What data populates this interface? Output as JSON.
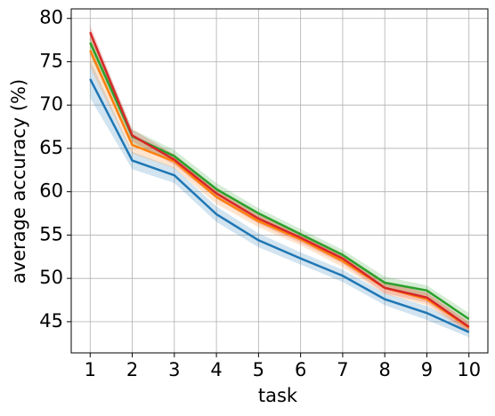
{
  "chart_data": {
    "type": "line",
    "xlabel": "task",
    "ylabel": "average accuracy (%)",
    "x": [
      1,
      2,
      3,
      4,
      5,
      6,
      7,
      8,
      9,
      10
    ],
    "series": [
      {
        "color": "#1f77b4",
        "values": [
          73.0,
          63.6,
          61.9,
          57.4,
          54.4,
          52.3,
          50.3,
          47.6,
          46.0,
          43.8
        ],
        "errors": [
          2.2,
          1.0,
          0.9,
          0.9,
          0.8,
          0.7,
          0.7,
          0.7,
          0.8,
          0.6
        ]
      },
      {
        "color": "#ff7f0e",
        "values": [
          76.3,
          65.4,
          63.5,
          59.4,
          56.6,
          54.5,
          52.0,
          48.9,
          47.6,
          44.3
        ],
        "errors": [
          2.0,
          1.0,
          0.8,
          0.8,
          0.7,
          0.7,
          0.7,
          0.7,
          0.7,
          0.6
        ]
      },
      {
        "color": "#2ca02c",
        "values": [
          77.2,
          66.4,
          64.1,
          60.3,
          57.5,
          55.1,
          52.7,
          49.5,
          48.6,
          45.3
        ],
        "errors": [
          1.5,
          0.8,
          0.7,
          0.7,
          0.6,
          0.6,
          0.6,
          0.7,
          0.6,
          0.7
        ]
      },
      {
        "color": "#d62728",
        "values": [
          78.4,
          66.5,
          63.7,
          59.8,
          56.9,
          54.7,
          52.3,
          48.9,
          47.8,
          44.4
        ],
        "errors": [
          0.8,
          0.7,
          0.6,
          0.6,
          0.6,
          0.6,
          0.6,
          0.6,
          0.6,
          0.6
        ]
      }
    ],
    "xlim": [
      0.55,
      10.45
    ],
    "xticks": [
      1,
      2,
      3,
      4,
      5,
      6,
      7,
      8,
      9,
      10
    ],
    "ylim": [
      41.4,
      81.1
    ],
    "yticks": [
      45,
      50,
      55,
      60,
      65,
      70,
      75,
      80
    ],
    "grid": true
  }
}
